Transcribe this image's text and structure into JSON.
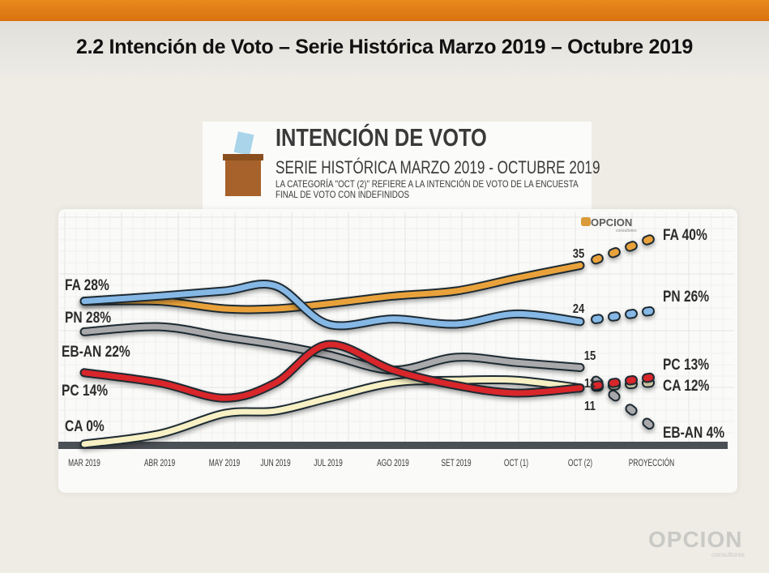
{
  "slide": {
    "title": "2.2 Intención de Voto – Serie Histórica Marzo 2019 – Octubre 2019",
    "accent_color": "#e07d16"
  },
  "header": {
    "title": "INTENCIÓN DE VOTO",
    "subtitle": "SERIE HISTÓRICA MARZO 2019 - OCTUBRE 2019",
    "note_line1": "LA CATEGORÍA \"OCT (2)\" REFIERE A LA INTENCIÓN DE VOTO DE LA ENCUESTA",
    "note_line2": "FINAL DE VOTO CON INDEFINIDOS",
    "icon": "ballot-box-icon"
  },
  "logos": {
    "chart_logo": "OPCION",
    "chart_logo_sub": "consultores",
    "footer_logo": "OPCION",
    "footer_logo_sub": "consultores"
  },
  "chart_data": {
    "type": "line",
    "title": "INTENCIÓN DE VOTO",
    "subtitle": "SERIE HISTÓRICA MARZO 2019 - OCTUBRE 2019",
    "categories": [
      "MAR 2019",
      "ABR 2019",
      "MAY 2019",
      "JUN 2019",
      "JUL 2019",
      "AGO 2019",
      "SET 2019",
      "OCT (1)",
      "OCT (2)",
      "PROYECCIÓN"
    ],
    "ylim": [
      0,
      42
    ],
    "xlabel": "",
    "ylabel": "",
    "grid": true,
    "legend": "inline-labels",
    "series": [
      {
        "name": "FA",
        "color": "#e9a23b",
        "start_label": "FA 28%",
        "end_value_label": "35",
        "projection_label": "FA 40%",
        "values": [
          28,
          28,
          26.5,
          26.5,
          27.5,
          29,
          30,
          32.5,
          35
        ],
        "projection": 40
      },
      {
        "name": "PN",
        "color": "#86b8e6",
        "start_label": "PN 28%",
        "end_value_label": "24",
        "projection_label": "PN 26%",
        "values": [
          28,
          29,
          30,
          31,
          23.5,
          24.5,
          23.5,
          25.5,
          24
        ],
        "projection": 26
      },
      {
        "name": "EB-AN",
        "color": "#a9a9ab",
        "start_label": "EB-AN 22%",
        "end_value_label": "15",
        "projection_label": "EB-AN 4%",
        "values": [
          22,
          23,
          21,
          19.5,
          17.5,
          14.5,
          17,
          16,
          15
        ],
        "projection": 4
      },
      {
        "name": "PC",
        "color": "#d8262a",
        "start_label": "PC 14%",
        "end_value_label": "11",
        "projection_label": "PC 13%",
        "values": [
          14,
          12,
          9,
          12,
          19.5,
          14.5,
          11.5,
          10,
          11
        ],
        "projection": 13
      },
      {
        "name": "CA",
        "color": "#f6f0c4",
        "start_label": "CA 0%",
        "end_value_label": "11",
        "projection_label": "CA 12%",
        "values": [
          0,
          2,
          6,
          6.5,
          9,
          12,
          12.5,
          12.5,
          11
        ],
        "projection": 12
      }
    ]
  }
}
